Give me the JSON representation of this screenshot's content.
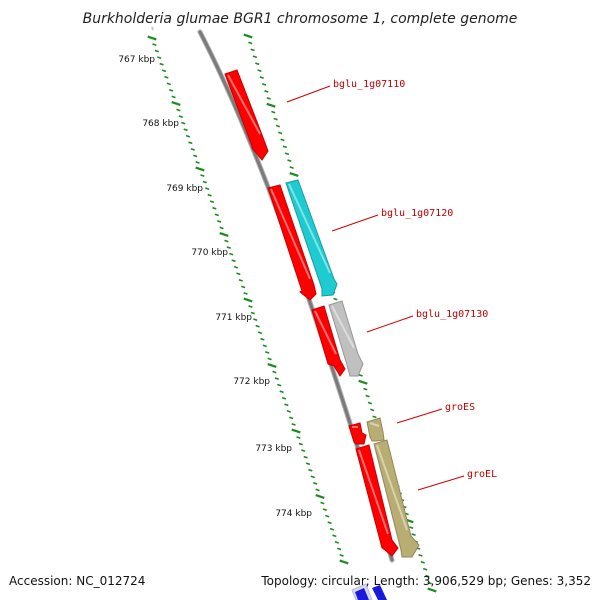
{
  "title": "Burkholderia glumae BGR1 chromosome 1, complete genome",
  "ruler": {
    "labels": [
      "767 kbp",
      "768 kbp",
      "769 kbp",
      "770 kbp",
      "771 kbp",
      "772 kbp",
      "773 kbp",
      "774 kbp"
    ],
    "tick_color": "#1f8a1f"
  },
  "genes": [
    {
      "name": "bglu_1g07110",
      "strand": "reverse",
      "color": "#ff0000"
    },
    {
      "name": "bglu_1g07120",
      "strand": "reverse",
      "color": "#ff0000"
    },
    {
      "name": "bglu_1g07120",
      "strand": "forward",
      "color": "#1ecbd0"
    },
    {
      "name": "bglu_1g07130",
      "strand": "reverse",
      "color": "#ff0000"
    },
    {
      "name": "bglu_1g07130",
      "strand": "forward",
      "color": "#c0c0c0"
    },
    {
      "name": "groES",
      "strand": "reverse",
      "color": "#ff0000"
    },
    {
      "name": "groES",
      "strand": "forward",
      "color": "#b8ad72"
    },
    {
      "name": "groEL",
      "strand": "reverse",
      "color": "#ff0000"
    },
    {
      "name": "groEL",
      "strand": "forward",
      "color": "#b8ad72"
    }
  ],
  "feature_labels": [
    {
      "text": "bglu_1g07110"
    },
    {
      "text": "bglu_1g07120"
    },
    {
      "text": "bglu_1g07130"
    },
    {
      "text": "groES"
    },
    {
      "text": "groEL"
    }
  ],
  "footer": {
    "accession": "Accession: NC_012724",
    "topology": "Topology: circular; Length: 3,906,529 bp; Genes: 3,352"
  },
  "colors": {
    "backbone": "#808080",
    "label_line": "#d00000",
    "label_text": "#c00000",
    "bottom_feature": "#1a1adc"
  }
}
